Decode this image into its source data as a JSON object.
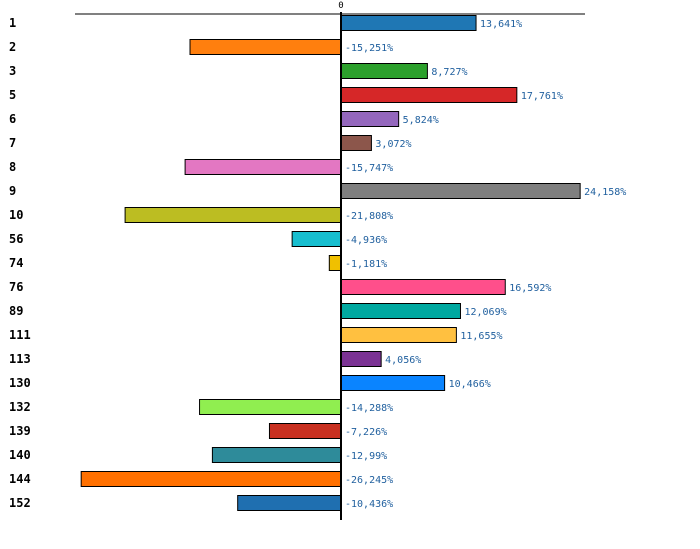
{
  "chart_data": {
    "type": "bar",
    "orientation": "horizontal",
    "title": "",
    "xlabel": "",
    "ylabel": "",
    "xlim": [
      -27,
      27
    ],
    "zero_label": "0",
    "value_suffix": "%",
    "categories": [
      "1",
      "2",
      "3",
      "5",
      "6",
      "7",
      "8",
      "9",
      "10",
      "56",
      "74",
      "76",
      "89",
      "111",
      "113",
      "130",
      "132",
      "139",
      "140",
      "144",
      "152"
    ],
    "values": [
      13.641,
      -15.251,
      8.727,
      17.761,
      5.824,
      3.072,
      -15.747,
      24.158,
      -21.808,
      -4.936,
      -1.181,
      16.592,
      12.069,
      11.655,
      4.056,
      10.466,
      -14.288,
      -7.226,
      -12.99,
      -26.245,
      -10.436
    ],
    "labels": [
      "13,641%",
      "-15,251%",
      "8,727%",
      "17,761%",
      "5,824%",
      "3,072%",
      "-15,747%",
      "24,158%",
      "-21,808%",
      "-4,936%",
      "-1,181%",
      "16,592%",
      "12,069%",
      "11,655%",
      "4,056%",
      "10,466%",
      "-14,288%",
      "-7,226%",
      "-12,99%",
      "-26,245%",
      "-10,436%"
    ],
    "colors": [
      "#1f77b4",
      "#ff7f0e",
      "#2ca02c",
      "#d62728",
      "#9467bd",
      "#8c564b",
      "#e377c2",
      "#7f7f7f",
      "#bcbd22",
      "#17becf",
      "#f0c000",
      "#ff4f8b",
      "#00a8a0",
      "#ffc040",
      "#7b3294",
      "#0a84ff",
      "#90ee50",
      "#c83020",
      "#2e8b9a",
      "#ff7000",
      "#1f6fb0"
    ],
    "grid": false
  }
}
